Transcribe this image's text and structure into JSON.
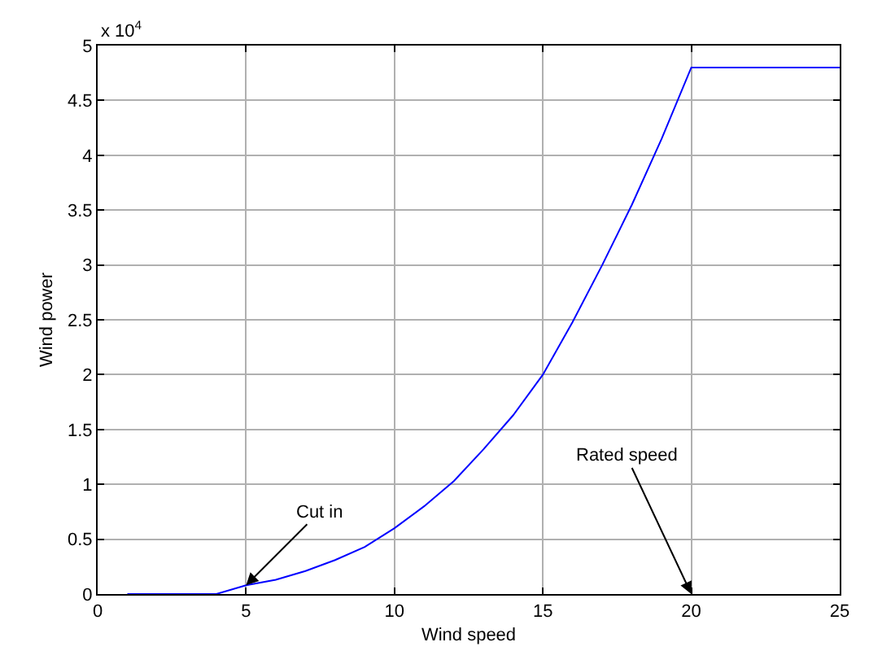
{
  "chart_data": {
    "type": "line",
    "xlabel": "Wind speed",
    "ylabel": "Wind power",
    "x": [
      1,
      2,
      3,
      4,
      5,
      6,
      7,
      8,
      9,
      10,
      11,
      12,
      13,
      14,
      15,
      16,
      17,
      18,
      19,
      20,
      21,
      22,
      23,
      24,
      25
    ],
    "series": [
      {
        "color": "#0000ff",
        "values": [
          0,
          0,
          0,
          0,
          0.08,
          0.13,
          0.21,
          0.31,
          0.43,
          0.6,
          0.8,
          1.03,
          1.32,
          1.63,
          2.0,
          2.48,
          3.0,
          3.55,
          4.15,
          4.8,
          4.8,
          4.8,
          4.8,
          4.8,
          4.8
        ]
      }
    ],
    "xlim": [
      0,
      25
    ],
    "xticks": [
      0,
      5,
      10,
      15,
      20,
      25
    ],
    "ylim": [
      0,
      5
    ],
    "yticks": [
      0,
      0.5,
      1,
      1.5,
      2,
      2.5,
      3,
      3.5,
      4,
      4.5,
      5
    ],
    "annotations": [
      "x 10$^{4}$",
      {
        "text": "Cut in",
        "x": 5,
        "y": 0.08
      },
      "Rated speed"
    ],
    "grid": true,
    "marker": "none",
    "line_style": "solid"
  }
}
